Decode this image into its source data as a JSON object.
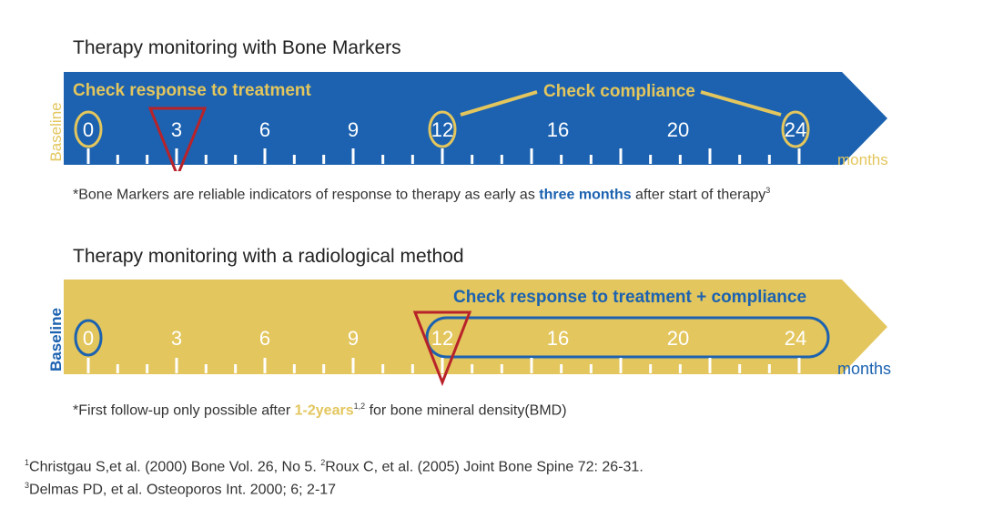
{
  "colors": {
    "blue": "#1c62b0",
    "yellow": "#e3c65d",
    "red": "#b8232a",
    "text": "#333333"
  },
  "section1": {
    "title": "Therapy monitoring with Bone Markers",
    "baseline_label": "Baseline",
    "months_label": "months",
    "check_response": "Check response to treatment",
    "check_compliance": "Check compliance",
    "ticks": [
      "0",
      "3",
      "6",
      "9",
      "12",
      "16",
      "20",
      "24"
    ],
    "circled_ticks": [
      "0",
      "12",
      "24"
    ],
    "triangle_marker_at": "3",
    "footnote": {
      "before": "*Bone Markers are reliable indicators of response to therapy as early as ",
      "highlight": "three months",
      "after": " after start of therapy",
      "sup": "3"
    }
  },
  "section2": {
    "title": "Therapy monitoring with a radiological method",
    "baseline_label": "Baseline",
    "months_label": "months",
    "check_label": "Check response to treatment + compliance",
    "ticks": [
      "0",
      "3",
      "6",
      "9",
      "12",
      "16",
      "20",
      "24"
    ],
    "circled_ticks": [
      "0"
    ],
    "capsule_range": [
      "12",
      "24"
    ],
    "triangle_marker_at": "12",
    "footnote": {
      "before": "*First follow-up only possible after ",
      "highlight": "1-2years",
      "sup": "1,2",
      "after": " for bone mineral density(BMD)"
    }
  },
  "references": {
    "line1_sup1": "1",
    "line1_a": "Christgau S,et al. (2000) Bone Vol. 26, No 5.  ",
    "line1_sup2": "2",
    "line1_b": "Roux C, et al. (2005) Joint Bone Spine 72: 26-31.",
    "line2_sup": "3",
    "line2": "Delmas PD, et al. Osteoporos Int. 2000; 6; 2-17"
  }
}
